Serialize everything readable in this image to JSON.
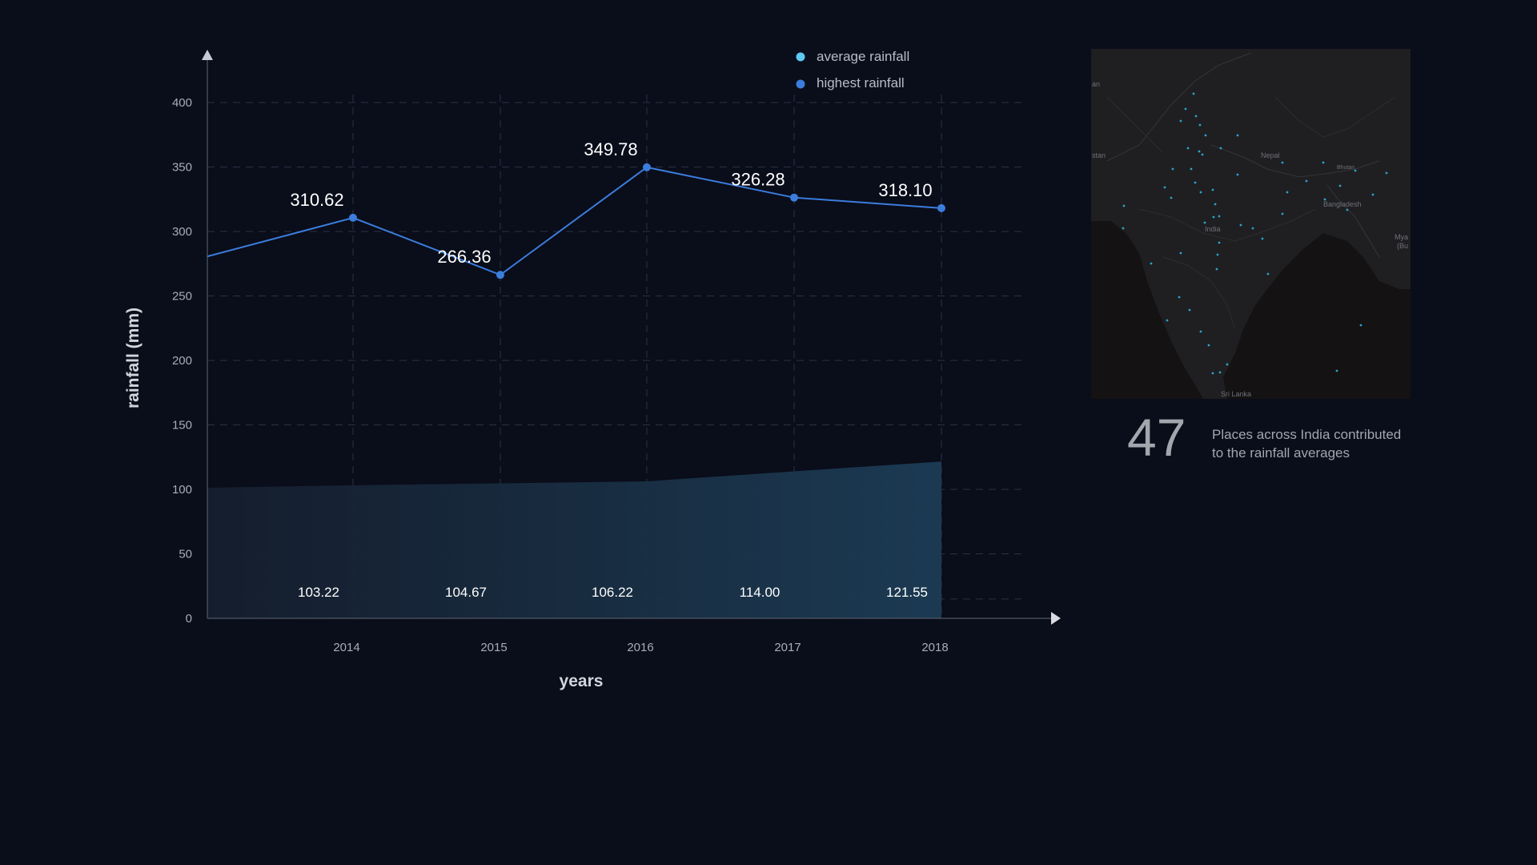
{
  "chart_data": {
    "type": "line",
    "categories": [
      "2014",
      "2015",
      "2016",
      "2017",
      "2018"
    ],
    "series": [
      {
        "name": "average rainfall",
        "type": "area",
        "color": "#5ec8f2",
        "values": [
          103.22,
          104.67,
          106.22,
          114.0,
          121.55
        ]
      },
      {
        "name": "highest rainfall",
        "type": "line",
        "color": "#3b7ddd",
        "values": [
          310.62,
          266.36,
          349.78,
          326.28,
          318.1
        ]
      }
    ],
    "value_labels": {
      "average": [
        "103.22",
        "104.67",
        "106.22",
        "114.00",
        "121.55"
      ],
      "highest": [
        "310.62",
        "266.36",
        "349.78",
        "326.28",
        "318.10"
      ]
    },
    "xlabel": "years",
    "ylabel": "rainfall (mm)",
    "ylim": [
      0,
      400
    ],
    "yticks": [
      0,
      50,
      100,
      150,
      200,
      250,
      300,
      350,
      400
    ],
    "grid": true,
    "legend_position": "top-right"
  },
  "map": {
    "labels": [
      "Nepal",
      "Bhutan",
      "Bangladesh",
      "India",
      "Sri Lanka",
      "Mya",
      "(Bu",
      "stan",
      "an"
    ]
  },
  "stats": {
    "places_count": "47",
    "places_text": "Places across India contributed to the rainfall averages"
  },
  "colors": {
    "background": "#0a0d1a",
    "line": "#3b7ddd",
    "area": "#1a3a50",
    "grid": "#2b3245",
    "dot": "#2aa3c9"
  }
}
